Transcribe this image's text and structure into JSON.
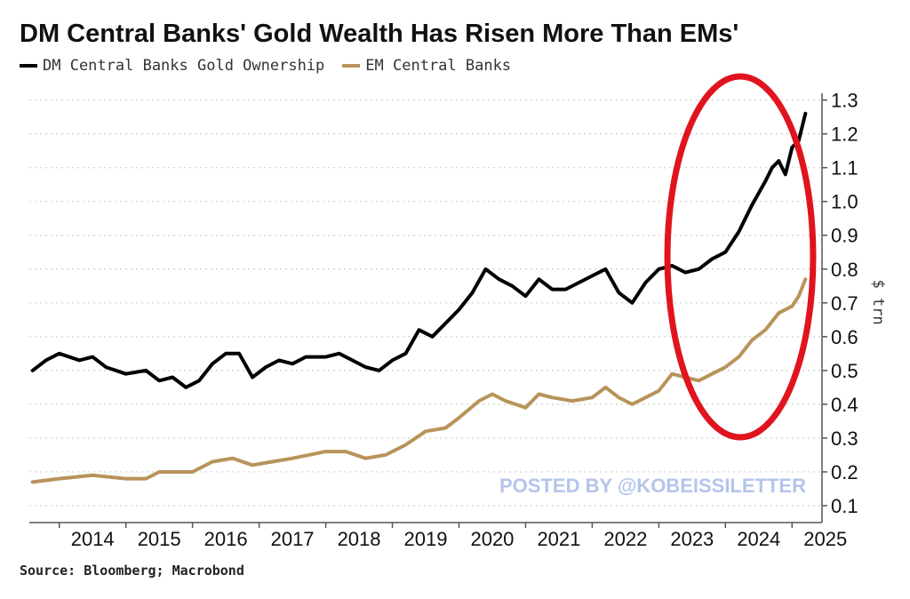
{
  "title": "DM Central Banks' Gold Wealth Has Risen More Than EMs'",
  "source": "Source: Bloomberg; Macrobond",
  "watermark": "POSTED BY @KOBEISSILETTER",
  "colors": {
    "dm": "#000000",
    "em": "#b8935a",
    "highlight": "#e0141e",
    "grid": "#cfcfcf"
  },
  "chart_data": {
    "type": "line",
    "ylabel": "$ trn",
    "ylim": [
      0.05,
      1.32
    ],
    "yticks": [
      0.1,
      0.2,
      0.3,
      0.4,
      0.5,
      0.6,
      0.7,
      0.8,
      0.9,
      1.0,
      1.1,
      1.2,
      1.3
    ],
    "ytick_labels": [
      "0.1",
      "0.2",
      "0.3",
      "0.4",
      "0.5",
      "0.6",
      "0.7",
      "0.8",
      "0.9",
      "1.0",
      "1.1",
      "1.2",
      "1.3"
    ],
    "xlim": [
      2013.55,
      2025.45
    ],
    "xticks": [
      "2014",
      "2015",
      "2016",
      "2017",
      "2018",
      "2019",
      "2020",
      "2021",
      "2022",
      "2023",
      "2024",
      "2025"
    ],
    "grid": true,
    "legend_position": "top-left",
    "annotation": "red ellipse highlighting 2023-2025",
    "series": [
      {
        "name": "DM Central Banks Gold Ownership",
        "points": [
          [
            2013.6,
            0.5
          ],
          [
            2013.8,
            0.53
          ],
          [
            2014.0,
            0.55
          ],
          [
            2014.3,
            0.53
          ],
          [
            2014.5,
            0.54
          ],
          [
            2014.7,
            0.51
          ],
          [
            2015.0,
            0.49
          ],
          [
            2015.3,
            0.5
          ],
          [
            2015.5,
            0.47
          ],
          [
            2015.7,
            0.48
          ],
          [
            2015.9,
            0.45
          ],
          [
            2016.1,
            0.47
          ],
          [
            2016.3,
            0.52
          ],
          [
            2016.5,
            0.55
          ],
          [
            2016.7,
            0.55
          ],
          [
            2016.9,
            0.48
          ],
          [
            2017.1,
            0.51
          ],
          [
            2017.3,
            0.53
          ],
          [
            2017.5,
            0.52
          ],
          [
            2017.7,
            0.54
          ],
          [
            2018.0,
            0.54
          ],
          [
            2018.2,
            0.55
          ],
          [
            2018.4,
            0.53
          ],
          [
            2018.6,
            0.51
          ],
          [
            2018.8,
            0.5
          ],
          [
            2019.0,
            0.53
          ],
          [
            2019.2,
            0.55
          ],
          [
            2019.4,
            0.62
          ],
          [
            2019.6,
            0.6
          ],
          [
            2019.8,
            0.64
          ],
          [
            2020.0,
            0.68
          ],
          [
            2020.2,
            0.73
          ],
          [
            2020.4,
            0.8
          ],
          [
            2020.6,
            0.77
          ],
          [
            2020.8,
            0.75
          ],
          [
            2021.0,
            0.72
          ],
          [
            2021.2,
            0.77
          ],
          [
            2021.4,
            0.74
          ],
          [
            2021.6,
            0.74
          ],
          [
            2021.8,
            0.76
          ],
          [
            2022.0,
            0.78
          ],
          [
            2022.2,
            0.8
          ],
          [
            2022.4,
            0.73
          ],
          [
            2022.6,
            0.7
          ],
          [
            2022.8,
            0.76
          ],
          [
            2023.0,
            0.8
          ],
          [
            2023.2,
            0.81
          ],
          [
            2023.4,
            0.79
          ],
          [
            2023.6,
            0.8
          ],
          [
            2023.8,
            0.83
          ],
          [
            2024.0,
            0.85
          ],
          [
            2024.2,
            0.91
          ],
          [
            2024.4,
            0.99
          ],
          [
            2024.6,
            1.06
          ],
          [
            2024.7,
            1.1
          ],
          [
            2024.8,
            1.12
          ],
          [
            2024.9,
            1.08
          ],
          [
            2025.0,
            1.16
          ],
          [
            2025.1,
            1.18
          ],
          [
            2025.2,
            1.26
          ]
        ]
      },
      {
        "name": "EM Central Banks",
        "points": [
          [
            2013.6,
            0.17
          ],
          [
            2014.0,
            0.18
          ],
          [
            2014.5,
            0.19
          ],
          [
            2015.0,
            0.18
          ],
          [
            2015.3,
            0.18
          ],
          [
            2015.5,
            0.2
          ],
          [
            2016.0,
            0.2
          ],
          [
            2016.3,
            0.23
          ],
          [
            2016.6,
            0.24
          ],
          [
            2016.9,
            0.22
          ],
          [
            2017.2,
            0.23
          ],
          [
            2017.5,
            0.24
          ],
          [
            2018.0,
            0.26
          ],
          [
            2018.3,
            0.26
          ],
          [
            2018.6,
            0.24
          ],
          [
            2018.9,
            0.25
          ],
          [
            2019.2,
            0.28
          ],
          [
            2019.5,
            0.32
          ],
          [
            2019.8,
            0.33
          ],
          [
            2020.0,
            0.36
          ],
          [
            2020.3,
            0.41
          ],
          [
            2020.5,
            0.43
          ],
          [
            2020.7,
            0.41
          ],
          [
            2021.0,
            0.39
          ],
          [
            2021.2,
            0.43
          ],
          [
            2021.4,
            0.42
          ],
          [
            2021.7,
            0.41
          ],
          [
            2022.0,
            0.42
          ],
          [
            2022.2,
            0.45
          ],
          [
            2022.4,
            0.42
          ],
          [
            2022.6,
            0.4
          ],
          [
            2022.8,
            0.42
          ],
          [
            2023.0,
            0.44
          ],
          [
            2023.2,
            0.49
          ],
          [
            2023.4,
            0.48
          ],
          [
            2023.6,
            0.47
          ],
          [
            2023.8,
            0.49
          ],
          [
            2024.0,
            0.51
          ],
          [
            2024.2,
            0.54
          ],
          [
            2024.4,
            0.59
          ],
          [
            2024.6,
            0.62
          ],
          [
            2024.8,
            0.67
          ],
          [
            2025.0,
            0.69
          ],
          [
            2025.1,
            0.72
          ],
          [
            2025.2,
            0.77
          ]
        ]
      }
    ]
  }
}
